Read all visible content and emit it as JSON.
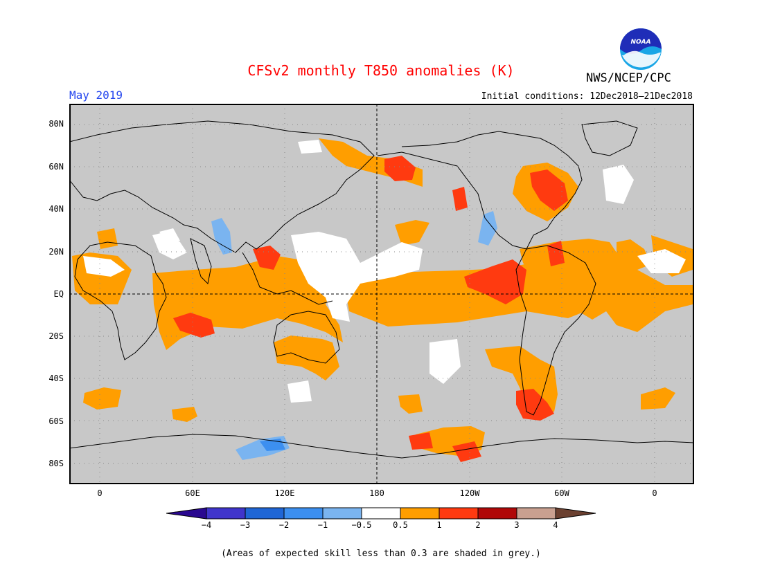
{
  "header": {
    "title": "CFSv2 monthly T850 anomalies (K)",
    "title_color": "#ff0000",
    "org": "NWS/NCEP/CPC",
    "logo_icon": "noaa-logo",
    "month": "May 2019",
    "month_color": "#2244ee",
    "initial_conditions": "Initial conditions: 12Dec2018–21Dec2018"
  },
  "axes": {
    "lat_labels": [
      "80N",
      "60N",
      "40N",
      "20N",
      "EQ",
      "20S",
      "40S",
      "60S",
      "80S"
    ],
    "lon_labels": [
      "0",
      "60E",
      "120E",
      "180",
      "120W",
      "60W",
      "0"
    ]
  },
  "colorbar": {
    "ticks": [
      "−4",
      "−3",
      "−2",
      "−1",
      "−0.5",
      "0.5",
      "1",
      "2",
      "3",
      "4"
    ],
    "colors": [
      "#2a0890",
      "#4035cc",
      "#1f66d6",
      "#3c8ff0",
      "#7ab4f0",
      "#ffffff",
      "#ff9e00",
      "#ff3a10",
      "#b00808",
      "#c9a090",
      "#6b4030"
    ]
  },
  "note": "(Areas of expected skill less than 0.3 are shaded in grey.)"
}
